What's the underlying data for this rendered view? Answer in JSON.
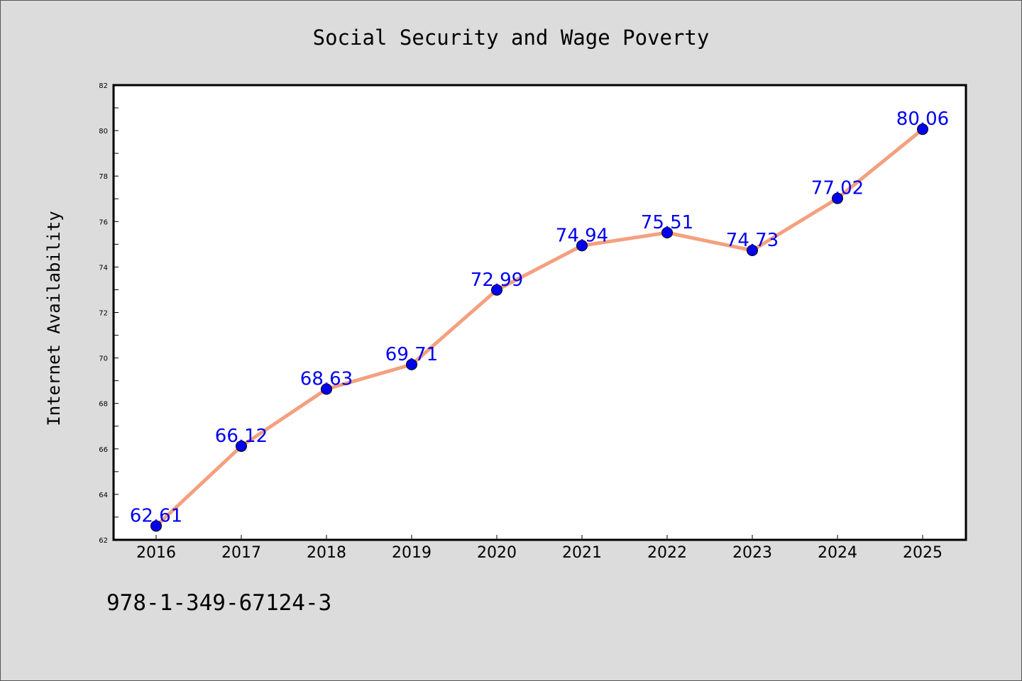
{
  "chart_data": {
    "type": "line",
    "title": "Social Security and Wage Poverty",
    "xlabel": "",
    "ylabel": "Internet Availability",
    "categories": [
      "2016",
      "2017",
      "2018",
      "2019",
      "2020",
      "2021",
      "2022",
      "2023",
      "2024",
      "2025"
    ],
    "values": [
      62.61,
      66.12,
      68.63,
      69.71,
      72.99,
      74.94,
      75.51,
      74.73,
      77.02,
      80.06
    ],
    "data_labels": [
      "62.61",
      "66.12",
      "68.63",
      "69.71",
      "72.99",
      "74.94",
      "75.51",
      "74.73",
      "77.02",
      "80.06"
    ],
    "ylim": [
      62,
      82
    ],
    "yticks": [
      62,
      64,
      66,
      68,
      70,
      72,
      74,
      76,
      78,
      80,
      82
    ],
    "grid": false,
    "legend": "none",
    "line_color": "#f4a07f",
    "marker_color": "#0000ee",
    "label_color": "#0000ee"
  },
  "footer": {
    "code": "978-1-349-67124-3"
  }
}
